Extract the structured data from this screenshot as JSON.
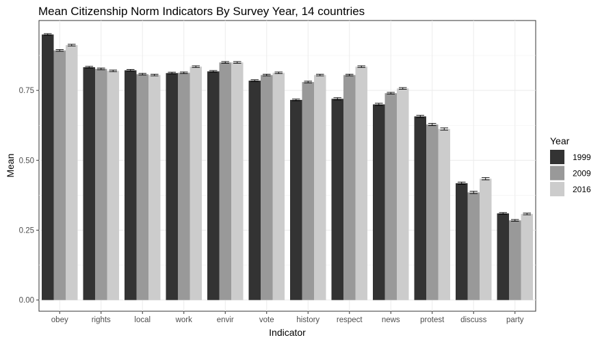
{
  "chart_data": {
    "type": "bar",
    "title": "Mean Citizenship Norm Indicators By Survey Year, 14 countries",
    "xlabel": "Indicator",
    "ylabel": "Mean",
    "ylim": [
      0,
      1
    ],
    "yticks": [
      "0.00",
      "0.25",
      "0.50",
      "0.75"
    ],
    "grid": true,
    "legend": {
      "title": "Year",
      "position": "right"
    },
    "categories": [
      "obey",
      "rights",
      "local",
      "work",
      "envir",
      "vote",
      "history",
      "respect",
      "news",
      "protest",
      "discuss",
      "party"
    ],
    "series": [
      {
        "name": "1999",
        "color": "#333333",
        "values": [
          0.95,
          0.833,
          0.822,
          0.812,
          0.818,
          0.785,
          0.716,
          0.72,
          0.7,
          0.657,
          0.418,
          0.31
        ],
        "errors": [
          0.003,
          0.003,
          0.003,
          0.003,
          0.003,
          0.003,
          0.003,
          0.004,
          0.004,
          0.004,
          0.004,
          0.003
        ]
      },
      {
        "name": "2009",
        "color": "#999999",
        "values": [
          0.893,
          0.827,
          0.808,
          0.813,
          0.85,
          0.805,
          0.78,
          0.805,
          0.74,
          0.628,
          0.385,
          0.285
        ],
        "errors": [
          0.003,
          0.003,
          0.003,
          0.003,
          0.003,
          0.003,
          0.003,
          0.003,
          0.003,
          0.004,
          0.004,
          0.003
        ]
      },
      {
        "name": "2016",
        "color": "#cccccc",
        "values": [
          0.912,
          0.82,
          0.805,
          0.835,
          0.85,
          0.813,
          0.805,
          0.835,
          0.757,
          0.612,
          0.434,
          0.308
        ],
        "errors": [
          0.003,
          0.003,
          0.003,
          0.003,
          0.003,
          0.003,
          0.003,
          0.003,
          0.003,
          0.004,
          0.004,
          0.003
        ]
      }
    ]
  }
}
